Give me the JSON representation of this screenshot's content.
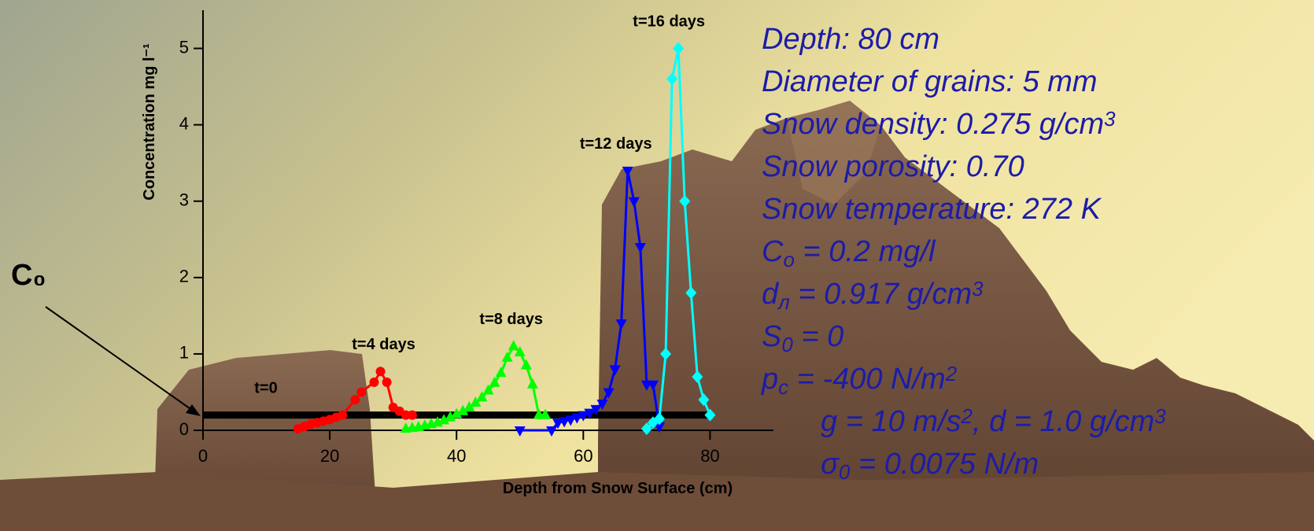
{
  "chart_data": {
    "type": "line",
    "x_label": "Depth from Snow Surface (cm)",
    "y_label": "Concentration mg l⁻¹",
    "annotation": "C₀",
    "xlim": [
      0,
      90
    ],
    "xticks": [
      0,
      20,
      40,
      60,
      80
    ],
    "ylim": [
      0,
      5.5
    ],
    "yticks": [
      0,
      1,
      2,
      3,
      4,
      5
    ],
    "series": [
      {
        "name": "t=0",
        "color": "#000000",
        "marker": "none",
        "line_width": 9,
        "x": [
          0,
          80
        ],
        "values": [
          0.2,
          0.2
        ]
      },
      {
        "name": "t=4 days",
        "color": "#ff0000",
        "marker": "circle",
        "line_width": 3,
        "x": [
          15,
          16,
          17,
          18,
          19,
          20,
          21,
          22,
          24,
          25,
          27,
          28,
          29,
          30,
          31,
          32,
          33
        ],
        "values": [
          0.02,
          0.05,
          0.08,
          0.1,
          0.12,
          0.14,
          0.17,
          0.2,
          0.4,
          0.5,
          0.63,
          0.77,
          0.63,
          0.3,
          0.25,
          0.2,
          0.2
        ]
      },
      {
        "name": "t=8 days",
        "color": "#00ff00",
        "marker": "triangle-up",
        "line_width": 3,
        "x": [
          32,
          33,
          34,
          35,
          36,
          37,
          38,
          39,
          40,
          41,
          42,
          43,
          44,
          45,
          46,
          47,
          48,
          49,
          50,
          51,
          52,
          53,
          54
        ],
        "values": [
          0.02,
          0.03,
          0.04,
          0.06,
          0.08,
          0.1,
          0.13,
          0.17,
          0.21,
          0.25,
          0.3,
          0.36,
          0.43,
          0.52,
          0.62,
          0.75,
          0.95,
          1.1,
          1.02,
          0.85,
          0.6,
          0.2,
          0.2
        ]
      },
      {
        "name": "t=12 days",
        "color": "#0000ff",
        "marker": "triangle-down",
        "line_width": 3,
        "x": [
          50,
          55,
          56,
          57,
          58,
          59,
          60,
          61,
          62,
          63,
          64,
          65,
          66,
          67,
          68,
          69,
          70,
          71,
          72
        ],
        "values": [
          0,
          0,
          0.1,
          0.12,
          0.14,
          0.17,
          0.2,
          0.23,
          0.28,
          0.35,
          0.5,
          0.8,
          1.4,
          3.4,
          3.0,
          2.4,
          0.6,
          0.6,
          0.05
        ]
      },
      {
        "name": "t=16 days",
        "color": "#00ffff",
        "marker": "diamond",
        "line_width": 3,
        "x": [
          70,
          71,
          72,
          73,
          74,
          75,
          76,
          77,
          78,
          79,
          80
        ],
        "values": [
          0.02,
          0.1,
          0.15,
          1.0,
          4.6,
          5.0,
          3.0,
          1.8,
          0.7,
          0.4,
          0.2
        ]
      }
    ],
    "parameters": [
      [
        "Depth: 80 cm"
      ],
      [
        "Diameter of grains: 5 mm"
      ],
      [
        "Snow density: 0.275 g/cm",
        {
          "sup": "3"
        }
      ],
      [
        "Snow porosity: 0.70"
      ],
      [
        "Snow temperature: 272 K"
      ],
      [
        "C",
        {
          "sub": "o"
        },
        " = 0.2 mg/l"
      ],
      [
        "d",
        {
          "sub": "л"
        },
        " = 0.917 g/cm",
        {
          "sup": "3"
        }
      ],
      [
        "S",
        {
          "sub": "0"
        },
        " = 0"
      ],
      [
        "p",
        {
          "sub": "c"
        },
        " = -400 N/m",
        {
          "sup": "2"
        }
      ],
      [
        "g = 10 m/s",
        {
          "sup": "2"
        },
        ", d = 1.0 g/cm",
        {
          "sup": "3"
        }
      ],
      [
        "σ",
        {
          "sub": "0"
        },
        " = 0.0075 N/m"
      ]
    ]
  }
}
